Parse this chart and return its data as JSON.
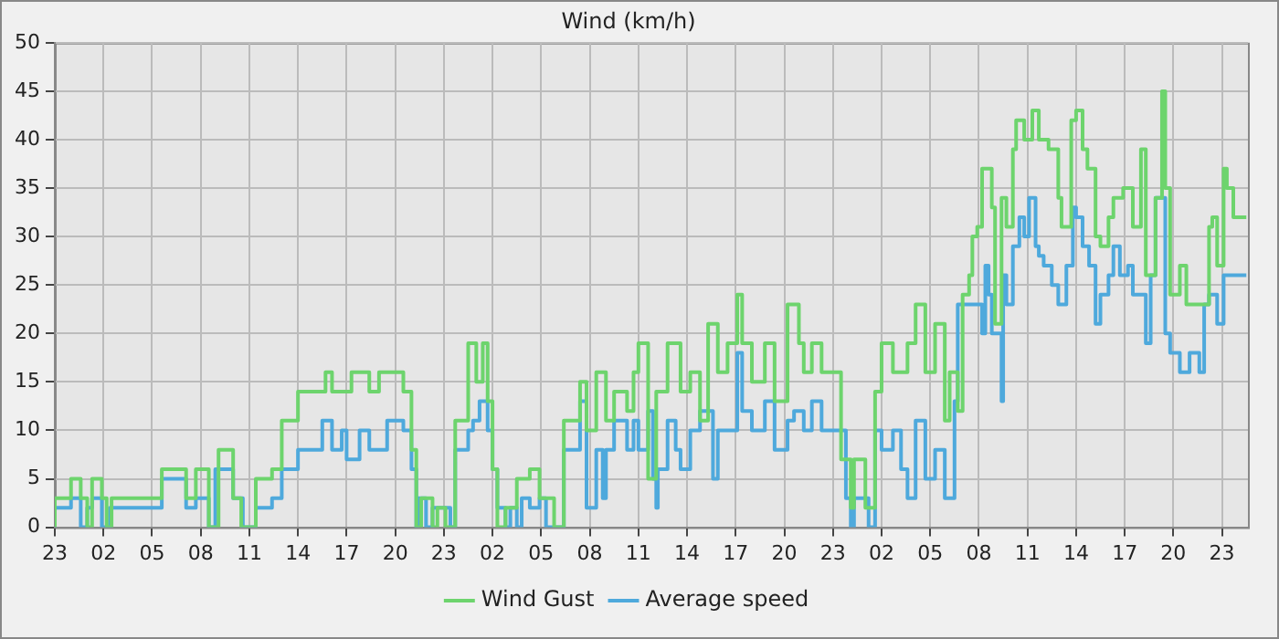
{
  "chart_data": {
    "type": "step",
    "title": "Wind (km/h)",
    "xlim": [
      "--01-01T23:00",
      "--01-05T00:36"
    ],
    "xticks": [
      {
        "value": "--01-01T23:00",
        "label": "23"
      },
      {
        "value": "--01-02T02:00",
        "label": "02"
      },
      {
        "value": "--01-02T05:00",
        "label": "05"
      },
      {
        "value": "--01-02T08:00",
        "label": "08"
      },
      {
        "value": "--01-02T11:00",
        "label": "11"
      },
      {
        "value": "--01-02T14:00",
        "label": "14"
      },
      {
        "value": "--01-02T17:00",
        "label": "17"
      },
      {
        "value": "--01-02T20:00",
        "label": "20"
      },
      {
        "value": "--01-02T23:00",
        "label": "23"
      },
      {
        "value": "--01-03T02:00",
        "label": "02"
      },
      {
        "value": "--01-03T05:00",
        "label": "05"
      },
      {
        "value": "--01-03T08:00",
        "label": "08"
      },
      {
        "value": "--01-03T11:00",
        "label": "11"
      },
      {
        "value": "--01-03T14:00",
        "label": "14"
      },
      {
        "value": "--01-03T17:00",
        "label": "17"
      },
      {
        "value": "--01-03T20:00",
        "label": "20"
      },
      {
        "value": "--01-03T23:00",
        "label": "23"
      },
      {
        "value": "--01-04T02:00",
        "label": "02"
      },
      {
        "value": "--01-04T05:00",
        "label": "05"
      },
      {
        "value": "--01-04T08:00",
        "label": "08"
      },
      {
        "value": "--01-04T11:00",
        "label": "11"
      },
      {
        "value": "--01-04T14:00",
        "label": "14"
      },
      {
        "value": "--01-04T17:00",
        "label": "17"
      },
      {
        "value": "--01-04T20:00",
        "label": "20"
      },
      {
        "value": "--01-04T23:00",
        "label": "23"
      }
    ],
    "ylim": [
      0,
      50
    ],
    "yticks": [
      0,
      5,
      10,
      15,
      20,
      25,
      30,
      35,
      40,
      45,
      50
    ],
    "grid": true,
    "legend": "bottom",
    "marker": "none",
    "series": [
      {
        "name": "Wind Gust",
        "color": "#6dd46d",
        "x": [
          "--01-01T23:00",
          "--01-02T00:00",
          "--01-02T00:36",
          "--01-02T01:00",
          "--01-02T01:18",
          "--01-02T01:54",
          "--01-02T02:12",
          "--01-02T02:30",
          "--01-02T05:36",
          "--01-02T07:06",
          "--01-02T07:42",
          "--01-02T08:30",
          "--01-02T09:06",
          "--01-02T10:00",
          "--01-02T10:30",
          "--01-02T11:24",
          "--01-02T12:24",
          "--01-02T13:00",
          "--01-02T14:00",
          "--01-02T15:42",
          "--01-02T16:06",
          "--01-02T17:18",
          "--01-02T18:24",
          "--01-02T19:00",
          "--01-02T20:30",
          "--01-02T21:00",
          "--01-02T21:18",
          "--01-02T21:36",
          "--01-02T22:18",
          "--01-02T22:36",
          "--01-02T23:06",
          "--01-02T23:42",
          "--01-03T00:30",
          "--01-03T01:00",
          "--01-03T01:24",
          "--01-03T01:42",
          "--01-03T02:00",
          "--01-03T02:18",
          "--01-03T02:48",
          "--01-03T03:30",
          "--01-03T04:18",
          "--01-03T04:54",
          "--01-03T05:48",
          "--01-03T06:24",
          "--01-03T07:24",
          "--01-03T07:48",
          "--01-03T08:24",
          "--01-03T09:00",
          "--01-03T09:30",
          "--01-03T10:18",
          "--01-03T10:42",
          "--01-03T11:00",
          "--01-03T11:36",
          "--01-03T12:06",
          "--01-03T12:48",
          "--01-03T13:36",
          "--01-03T14:12",
          "--01-03T14:48",
          "--01-03T15:18",
          "--01-03T15:54",
          "--01-03T16:30",
          "--01-03T17:06",
          "--01-03T17:24",
          "--01-03T18:00",
          "--01-03T18:48",
          "--01-03T19:24",
          "--01-03T20:12",
          "--01-03T20:54",
          "--01-03T21:12",
          "--01-03T21:42",
          "--01-03T22:18",
          "--01-03T23:30",
          "--01-04T00:06",
          "--01-04T00:18",
          "--01-04T01:00",
          "--01-04T01:36",
          "--01-04T02:00",
          "--01-04T02:42",
          "--01-04T03:36",
          "--01-04T04:06",
          "--01-04T04:42",
          "--01-04T05:18",
          "--01-04T05:54",
          "--01-04T06:12",
          "--01-04T06:42",
          "--01-04T07:00",
          "--01-04T07:24",
          "--01-04T07:36",
          "--01-04T07:54",
          "--01-04T08:12",
          "--01-04T08:48",
          "--01-04T09:00",
          "--01-04T09:24",
          "--01-04T09:42",
          "--01-04T10:06",
          "--01-04T10:18",
          "--01-04T10:48",
          "--01-04T11:18",
          "--01-04T11:42",
          "--01-04T12:18",
          "--01-04T12:54",
          "--01-04T13:06",
          "--01-04T13:42",
          "--01-04T14:00",
          "--01-04T14:24",
          "--01-04T14:42",
          "--01-04T15:12",
          "--01-04T15:30",
          "--01-04T16:00",
          "--01-04T16:18",
          "--01-04T16:54",
          "--01-04T17:30",
          "--01-04T18:00",
          "--01-04T18:18",
          "--01-04T18:54",
          "--01-04T19:18",
          "--01-04T19:30",
          "--01-04T19:48",
          "--01-04T20:24",
          "--01-04T20:48",
          "--01-04T21:06",
          "--01-04T22:12",
          "--01-04T22:24",
          "--01-04T22:42",
          "--01-04T23:06",
          "--01-04T23:18",
          "--01-04T23:42",
          "--01-05T00:00",
          "--01-05T00:30"
        ],
        "values": [
          0,
          3,
          5,
          3,
          0,
          5,
          3,
          0,
          3,
          6,
          3,
          6,
          0,
          8,
          3,
          0,
          5,
          6,
          11,
          14,
          16,
          14,
          16,
          14,
          16,
          14,
          8,
          0,
          3,
          0,
          2,
          0,
          11,
          19,
          15,
          19,
          13,
          6,
          0,
          2,
          5,
          6,
          3,
          0,
          11,
          15,
          10,
          16,
          11,
          14,
          12,
          16,
          19,
          5,
          14,
          19,
          14,
          16,
          11,
          21,
          16,
          19,
          24,
          19,
          15,
          19,
          13,
          23,
          19,
          16,
          19,
          16,
          7,
          2,
          7,
          2,
          14,
          19,
          16,
          19,
          23,
          16,
          21,
          11,
          16,
          12,
          24,
          26,
          30,
          31,
          37,
          33,
          21,
          34,
          31,
          39,
          42,
          40,
          43,
          40,
          39,
          34,
          31,
          42,
          43,
          39,
          37,
          30,
          29,
          32,
          34,
          35,
          31,
          39,
          26,
          34,
          45,
          35,
          24,
          27,
          23,
          23,
          31,
          32,
          27,
          37,
          35,
          32,
          32
        ]
      },
      {
        "name": "Average speed",
        "color": "#4ea9dc",
        "x": [
          "--01-01T23:00",
          "--01-02T00:00",
          "--01-02T00:36",
          "--01-02T01:00",
          "--01-02T01:18",
          "--01-02T01:54",
          "--01-02T02:24",
          "--01-02T05:36",
          "--01-02T07:06",
          "--01-02T07:42",
          "--01-02T08:30",
          "--01-02T08:54",
          "--01-02T10:00",
          "--01-02T10:36",
          "--01-02T11:24",
          "--01-02T12:24",
          "--01-02T13:00",
          "--01-02T14:00",
          "--01-02T15:30",
          "--01-02T16:06",
          "--01-02T16:42",
          "--01-02T17:00",
          "--01-02T17:48",
          "--01-02T18:24",
          "--01-02T19:30",
          "--01-02T20:30",
          "--01-02T21:00",
          "--01-02T21:18",
          "--01-02T21:24",
          "--01-02T21:54",
          "--01-02T22:18",
          "--01-02T23:24",
          "--01-02T23:42",
          "--01-03T00:30",
          "--01-03T00:48",
          "--01-03T01:12",
          "--01-03T01:42",
          "--01-03T02:00",
          "--01-03T02:18",
          "--01-03T02:48",
          "--01-03T03:06",
          "--01-03T03:30",
          "--01-03T03:48",
          "--01-03T04:18",
          "--01-03T04:54",
          "--01-03T05:18",
          "--01-03T06:24",
          "--01-03T07:24",
          "--01-03T07:48",
          "--01-03T08:24",
          "--01-03T08:48",
          "--01-03T09:00",
          "--01-03T09:30",
          "--01-03T10:18",
          "--01-03T10:42",
          "--01-03T11:00",
          "--01-03T11:36",
          "--01-03T11:54",
          "--01-03T12:06",
          "--01-03T12:12",
          "--01-03T12:48",
          "--01-03T13:18",
          "--01-03T13:36",
          "--01-03T14:12",
          "--01-03T14:48",
          "--01-03T15:36",
          "--01-03T15:54",
          "--01-03T17:06",
          "--01-03T17:24",
          "--01-03T18:00",
          "--01-03T18:48",
          "--01-03T19:24",
          "--01-03T20:12",
          "--01-03T20:36",
          "--01-03T21:12",
          "--01-03T21:42",
          "--01-03T22:18",
          "--01-03T23:48",
          "--01-04T00:06",
          "--01-04T00:18",
          "--01-04T01:12",
          "--01-04T01:36",
          "--01-04T02:00",
          "--01-04T02:42",
          "--01-04T03:12",
          "--01-04T03:36",
          "--01-04T04:06",
          "--01-04T04:42",
          "--01-04T05:18",
          "--01-04T05:54",
          "--01-04T06:30",
          "--01-04T06:42",
          "--01-04T07:00",
          "--01-04T08:12",
          "--01-04T08:24",
          "--01-04T08:36",
          "--01-04T08:48",
          "--01-04T09:24",
          "--01-04T09:30",
          "--01-04T09:42",
          "--01-04T10:06",
          "--01-04T10:30",
          "--01-04T10:48",
          "--01-04T11:06",
          "--01-04T11:30",
          "--01-04T11:42",
          "--01-04T12:00",
          "--01-04T12:30",
          "--01-04T12:54",
          "--01-04T13:24",
          "--01-04T13:48",
          "--01-04T14:00",
          "--01-04T14:24",
          "--01-04T14:48",
          "--01-04T15:12",
          "--01-04T15:30",
          "--01-04T16:00",
          "--01-04T16:18",
          "--01-04T16:42",
          "--01-04T17:12",
          "--01-04T17:30",
          "--01-04T18:18",
          "--01-04T18:36",
          "--01-04T18:54",
          "--01-04T19:30",
          "--01-04T19:48",
          "--01-04T20:24",
          "--01-04T21:00",
          "--01-04T21:36",
          "--01-04T21:54",
          "--01-04T22:12",
          "--01-04T22:42",
          "--01-04T23:06",
          "--01-04T23:18",
          "--01-05T00:18",
          "--01-05T00:30"
        ],
        "values": [
          0,
          2,
          3,
          0,
          2,
          3,
          0,
          2,
          5,
          2,
          3,
          0,
          6,
          3,
          0,
          2,
          3,
          6,
          8,
          11,
          8,
          10,
          7,
          10,
          8,
          11,
          10,
          6,
          0,
          3,
          0,
          2,
          0,
          8,
          10,
          11,
          13,
          10,
          6,
          2,
          0,
          2,
          0,
          3,
          2,
          3,
          0,
          8,
          13,
          2,
          8,
          3,
          8,
          11,
          8,
          11,
          8,
          12,
          5,
          2,
          6,
          11,
          8,
          6,
          10,
          12,
          5,
          10,
          18,
          12,
          10,
          13,
          8,
          11,
          12,
          10,
          13,
          10,
          3,
          0,
          3,
          0,
          10,
          8,
          10,
          6,
          3,
          11,
          5,
          8,
          3,
          13,
          23,
          23,
          20,
          27,
          24,
          20,
          13,
          26,
          23,
          29,
          32,
          30,
          34,
          29,
          28,
          27,
          25,
          23,
          27,
          33,
          32,
          29,
          27,
          21,
          24,
          26,
          29,
          26,
          27,
          24,
          19,
          26,
          34,
          20,
          18,
          16,
          18,
          16,
          23,
          24,
          21,
          26,
          26,
          26
        ]
      }
    ]
  }
}
